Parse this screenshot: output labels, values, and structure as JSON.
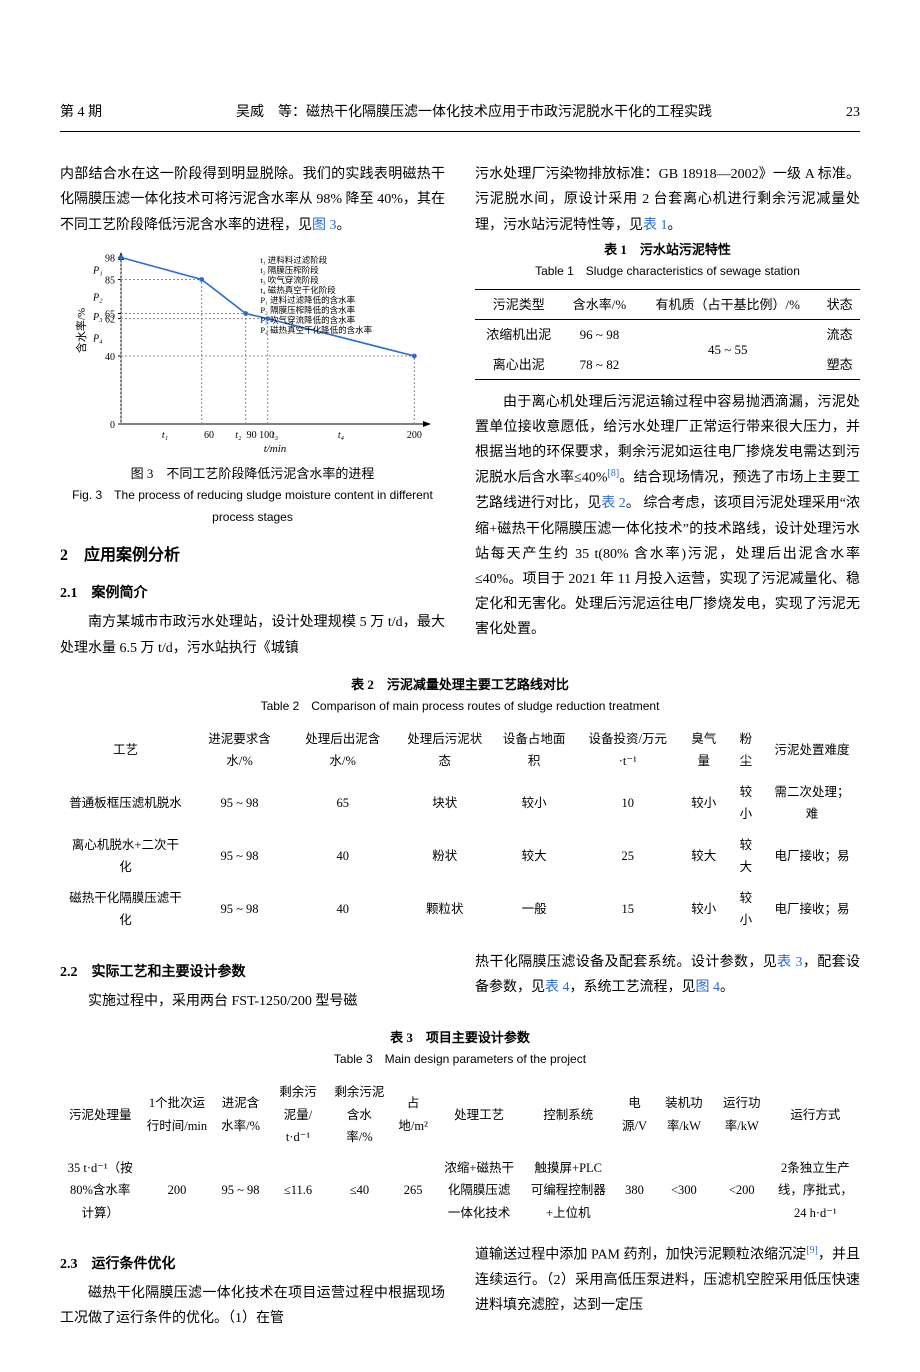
{
  "header": {
    "issue": "第 4 期",
    "title": "吴威　等：磁热干化隔膜压滤一体化技术应用于市政污泥脱水干化的工程实践",
    "page": "23"
  },
  "col_left": {
    "p1": "内部结合水在这一阶段得到明显脱除。我们的实践表明磁热干化隔膜压滤一体化技术可将污泥含水率从 98% 降至 40%，其在不同工艺阶段降低污泥含水率的进程，见",
    "p1_link": "图 3",
    "p1_tail": "。"
  },
  "fig3": {
    "caption_cn": "图 3　不同工艺阶段降低污泥含水率的进程",
    "caption_en": "Fig. 3　The process of reducing sludge moisture content in different process stages",
    "y_label": "含水率/%",
    "x_label": "t/min",
    "y_ticks": [
      "0",
      "40",
      "62",
      "65",
      "85",
      "98"
    ],
    "y_points": [
      "P₄",
      "P₃",
      "P₂",
      "P₁"
    ],
    "x_ticks": [
      "t₁",
      "60",
      "t₂",
      "90 100",
      "t₃",
      "t₄",
      "200"
    ],
    "legend": [
      "t₁ 进料料过滤阶段",
      "t₂ 隔膜压榨阶段",
      "t₃ 吹气穿流阶段",
      "t₄ 磁热真空干化阶段",
      "P₁ 进料过滤降低的含水率",
      "P₂ 隔膜压榨降低的含水率",
      "P₃ 吹气穿流降低的含水率",
      "P₄ 磁热真空干化降低的含水率"
    ],
    "line_color": "#2a6bd8",
    "axis_color": "#000000",
    "points": [
      {
        "x": 0,
        "y": 98
      },
      {
        "x": 55,
        "y": 85
      },
      {
        "x": 85,
        "y": 65
      },
      {
        "x": 100,
        "y": 62
      },
      {
        "x": 200,
        "y": 40
      }
    ]
  },
  "sec2": {
    "title": "2　应用案例分析"
  },
  "sec21": {
    "title": "2.1　案例简介",
    "p1": "南方某城市市政污水处理站，设计处理规模 5 万 t/d，最大处理水量 6.5 万 t/d，污水站执行《城镇"
  },
  "col_right": {
    "p1a": "污水处理厂污染物排放标准：GB 18918—2002》一级 A 标准。污泥脱水间，原设计采用 2 台套离心机进行剩余污泥减量处理，污水站污泥特性等，见",
    "p1a_link": "表 1",
    "p1a_tail": "。"
  },
  "table1": {
    "title_cn": "表 1　污水站污泥特性",
    "title_en": "Table 1　Sludge characteristics of sewage station",
    "headers": [
      "污泥类型",
      "含水率/%",
      "有机质（占干基比例）/%",
      "状态"
    ],
    "rows": [
      [
        "浓缩机出泥",
        "96 ~ 98",
        "",
        "流态"
      ],
      [
        "离心出泥",
        "78 ~ 82",
        "45 ~ 55",
        "塑态"
      ]
    ]
  },
  "right_p2": {
    "a": "由于离心机处理后污泥运输过程中容易抛洒滴漏，污泥处置单位接收意愿低，给污水处理厂正常运行带来很大压力，并根据当地的环保要求，剩余污泥如运往电厂掺烧发电需达到污泥脱水后含水率≤40%",
    "ref": "[8]",
    "b": "。结合现场情况，预选了市场上主要工艺路线进行对比，见",
    "link": "表 2",
    "c": "。 综合考虑，该项目污泥处理采用“浓缩+磁热干化隔膜压滤一体化技术”的技术路线，设计处理污水站每天产生约 35 t(80% 含水率)污泥，处理后出泥含水率≤40%。项目于 2021 年 11 月投入运营，实现了污泥减量化、稳定化和无害化。处理后污泥运往电厂掺烧发电，实现了污泥无害化处置。"
  },
  "table2": {
    "title_cn": "表 2　污泥减量处理主要工艺路线对比",
    "title_en": "Table 2　Comparison of main process routes of sludge reduction treatment",
    "headers": [
      "工艺",
      "进泥要求含水/%",
      "处理后出泥含水/%",
      "处理后污泥状态",
      "设备占地面积",
      "设备投资/万元·t⁻¹",
      "臭气量",
      "粉尘",
      "污泥处置难度"
    ],
    "rows": [
      [
        "普通板框压滤机脱水",
        "95 ~ 98",
        "65",
        "块状",
        "较小",
        "10",
        "较小",
        "较小",
        "需二次处理；难"
      ],
      [
        "离心机脱水+二次干化",
        "95 ~ 98",
        "40",
        "粉状",
        "较大",
        "25",
        "较大",
        "较大",
        "电厂接收；易"
      ],
      [
        "磁热干化隔膜压滤干化",
        "95 ~ 98",
        "40",
        "颗粒状",
        "一般",
        "15",
        "较小",
        "较小",
        "电厂接收；易"
      ]
    ]
  },
  "sec22": {
    "title": "2.2　实际工艺和主要设计参数",
    "left": "实施过程中，采用两台 FST-1250/200 型号磁",
    "right_a": "热干化隔膜压滤设备及配套系统。设计参数，见",
    "right_link1": "表 3",
    "right_b": "，配套设备参数，见",
    "right_link2": "表 4",
    "right_c": "，系统工艺流程，见",
    "right_link3": "图 4",
    "right_d": "。"
  },
  "table3": {
    "title_cn": "表 3　项目主要设计参数",
    "title_en": "Table 3　Main design parameters of the project",
    "headers": [
      "污泥处理量",
      "1个批次运行时间/min",
      "进泥含水率/%",
      "剩余污泥量/ t·d⁻¹",
      "剩余污泥含水率/%",
      "占地/m²",
      "处理工艺",
      "控制系统",
      "电源/V",
      "装机功率/kW",
      "运行功率/kW",
      "运行方式"
    ],
    "rows": [
      [
        "35 t·d⁻¹（按80%含水率计算）",
        "200",
        "95 ~ 98",
        "≤11.6",
        "≤40",
        "265",
        "浓缩+磁热干化隔膜压滤一体化技术",
        "触摸屏+PLC可编程控制器+上位机",
        "380",
        "<300",
        "<200",
        "2条独立生产线，序批式，24 h·d⁻¹"
      ]
    ]
  },
  "sec23": {
    "title": "2.3　运行条件优化",
    "left": "磁热干化隔膜压滤一体化技术在项目运营过程中根据现场工况做了运行条件的优化。（1）在管",
    "right_a": "道输送过程中添加 PAM 药剂，加快污泥颗粒浓缩沉淀",
    "right_ref": "[9]",
    "right_b": "，并且连续运行。（2）采用高低压泵进料，压滤机空腔采用低压快速进料填充滤腔，达到一定压"
  }
}
